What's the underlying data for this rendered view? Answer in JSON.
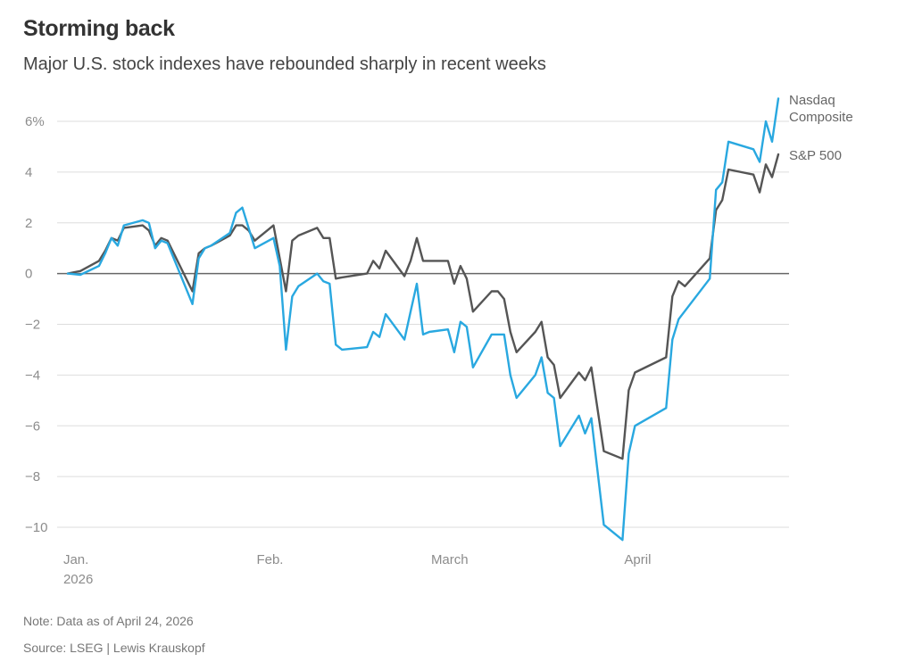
{
  "header": {
    "title": "Storming back",
    "subtitle": "Major U.S. stock indexes have rebounded sharply in recent weeks"
  },
  "footer": {
    "note": "Note: Data as of April 24, 2026",
    "source": "Source: LSEG | Lewis Krauskopf"
  },
  "colors": {
    "nasdaq": "#29a8e0",
    "sp500": "#555555",
    "grid": "#dddddd",
    "zero": "#666666"
  },
  "chart_data": {
    "type": "line",
    "title": "Storming back",
    "subtitle": "Major U.S. stock indexes have rebounded sharply in recent weeks",
    "ylabel": "",
    "y_unit": "%",
    "ylim": [
      -10.5,
      7
    ],
    "yticks": [
      -10,
      -8,
      -6,
      -4,
      -2,
      0,
      2,
      4,
      6
    ],
    "ytick_labels": [
      "−10",
      "−8",
      "−6",
      "−4",
      "−2",
      "0",
      "2",
      "4",
      "6%"
    ],
    "x_range": [
      "2025-12-31",
      "2026-04-24"
    ],
    "xticks": [
      {
        "date": "2026-01-01",
        "label": "Jan.",
        "label2": "2026"
      },
      {
        "date": "2026-02-01",
        "label": "Feb.",
        "label2": ""
      },
      {
        "date": "2026-03-01",
        "label": "March",
        "label2": ""
      },
      {
        "date": "2026-04-01",
        "label": "April",
        "label2": ""
      }
    ],
    "grid": true,
    "series": [
      {
        "name": "Nasdaq Composite",
        "label_lines": [
          "Nasdaq",
          "Composite"
        ],
        "color": "#29a8e0",
        "points": [
          [
            "2025-12-31",
            0.0
          ],
          [
            "2026-01-02",
            -0.05
          ],
          [
            "2026-01-05",
            0.3
          ],
          [
            "2026-01-06",
            0.8
          ],
          [
            "2026-01-07",
            1.4
          ],
          [
            "2026-01-08",
            1.1
          ],
          [
            "2026-01-09",
            1.9
          ],
          [
            "2026-01-12",
            2.1
          ],
          [
            "2026-01-13",
            2.0
          ],
          [
            "2026-01-14",
            1.0
          ],
          [
            "2026-01-15",
            1.3
          ],
          [
            "2026-01-16",
            1.2
          ],
          [
            "2026-01-20",
            -1.2
          ],
          [
            "2026-01-21",
            0.6
          ],
          [
            "2026-01-22",
            1.0
          ],
          [
            "2026-01-23",
            1.1
          ],
          [
            "2026-01-26",
            1.6
          ],
          [
            "2026-01-27",
            2.4
          ],
          [
            "2026-01-28",
            2.6
          ],
          [
            "2026-01-29",
            1.8
          ],
          [
            "2026-01-30",
            1.0
          ],
          [
            "2026-02-02",
            1.4
          ],
          [
            "2026-02-03",
            0.3
          ],
          [
            "2026-02-04",
            -3.0
          ],
          [
            "2026-02-05",
            -0.9
          ],
          [
            "2026-02-06",
            -0.5
          ],
          [
            "2026-02-09",
            0.0
          ],
          [
            "2026-02-10",
            -0.3
          ],
          [
            "2026-02-11",
            -0.4
          ],
          [
            "2026-02-12",
            -2.8
          ],
          [
            "2026-02-13",
            -3.0
          ],
          [
            "2026-02-17",
            -2.9
          ],
          [
            "2026-02-18",
            -2.3
          ],
          [
            "2026-02-19",
            -2.5
          ],
          [
            "2026-02-20",
            -1.6
          ],
          [
            "2026-02-23",
            -2.6
          ],
          [
            "2026-02-24",
            -1.5
          ],
          [
            "2026-02-25",
            -0.4
          ],
          [
            "2026-02-26",
            -2.4
          ],
          [
            "2026-02-27",
            -2.3
          ],
          [
            "2026-03-02",
            -2.2
          ],
          [
            "2026-03-03",
            -3.1
          ],
          [
            "2026-03-04",
            -1.9
          ],
          [
            "2026-03-05",
            -2.1
          ],
          [
            "2026-03-06",
            -3.7
          ],
          [
            "2026-03-09",
            -2.4
          ],
          [
            "2026-03-10",
            -2.4
          ],
          [
            "2026-03-11",
            -2.4
          ],
          [
            "2026-03-12",
            -4.0
          ],
          [
            "2026-03-13",
            -4.9
          ],
          [
            "2026-03-16",
            -4.0
          ],
          [
            "2026-03-17",
            -3.3
          ],
          [
            "2026-03-18",
            -4.7
          ],
          [
            "2026-03-19",
            -4.9
          ],
          [
            "2026-03-20",
            -6.8
          ],
          [
            "2026-03-23",
            -5.6
          ],
          [
            "2026-03-24",
            -6.3
          ],
          [
            "2026-03-25",
            -5.7
          ],
          [
            "2026-03-27",
            -9.9
          ],
          [
            "2026-03-30",
            -10.5
          ],
          [
            "2026-03-31",
            -7.1
          ],
          [
            "2026-04-01",
            -6.0
          ],
          [
            "2026-04-06",
            -5.3
          ],
          [
            "2026-04-07",
            -2.6
          ],
          [
            "2026-04-08",
            -1.8
          ],
          [
            "2026-04-13",
            -0.2
          ],
          [
            "2026-04-14",
            3.3
          ],
          [
            "2026-04-15",
            3.6
          ],
          [
            "2026-04-16",
            5.2
          ],
          [
            "2026-04-20",
            4.9
          ],
          [
            "2026-04-21",
            4.4
          ],
          [
            "2026-04-22",
            6.0
          ],
          [
            "2026-04-23",
            5.2
          ],
          [
            "2026-04-24",
            6.9
          ]
        ]
      },
      {
        "name": "S&P 500",
        "label_lines": [
          "S&P 500"
        ],
        "color": "#555555",
        "points": [
          [
            "2025-12-31",
            0.0
          ],
          [
            "2026-01-02",
            0.1
          ],
          [
            "2026-01-05",
            0.5
          ],
          [
            "2026-01-06",
            0.9
          ],
          [
            "2026-01-07",
            1.4
          ],
          [
            "2026-01-08",
            1.3
          ],
          [
            "2026-01-09",
            1.8
          ],
          [
            "2026-01-12",
            1.9
          ],
          [
            "2026-01-13",
            1.7
          ],
          [
            "2026-01-14",
            1.1
          ],
          [
            "2026-01-15",
            1.4
          ],
          [
            "2026-01-16",
            1.3
          ],
          [
            "2026-01-20",
            -0.7
          ],
          [
            "2026-01-21",
            0.8
          ],
          [
            "2026-01-22",
            1.0
          ],
          [
            "2026-01-23",
            1.1
          ],
          [
            "2026-01-26",
            1.5
          ],
          [
            "2026-01-27",
            1.9
          ],
          [
            "2026-01-28",
            1.9
          ],
          [
            "2026-01-29",
            1.7
          ],
          [
            "2026-01-30",
            1.3
          ],
          [
            "2026-02-02",
            1.9
          ],
          [
            "2026-02-03",
            0.6
          ],
          [
            "2026-02-04",
            -0.7
          ],
          [
            "2026-02-05",
            1.3
          ],
          [
            "2026-02-06",
            1.5
          ],
          [
            "2026-02-09",
            1.8
          ],
          [
            "2026-02-10",
            1.4
          ],
          [
            "2026-02-11",
            1.4
          ],
          [
            "2026-02-12",
            -0.2
          ],
          [
            "2026-02-13",
            -0.15
          ],
          [
            "2026-02-17",
            0.0
          ],
          [
            "2026-02-18",
            0.5
          ],
          [
            "2026-02-19",
            0.2
          ],
          [
            "2026-02-20",
            0.9
          ],
          [
            "2026-02-23",
            -0.1
          ],
          [
            "2026-02-24",
            0.5
          ],
          [
            "2026-02-25",
            1.4
          ],
          [
            "2026-02-26",
            0.5
          ],
          [
            "2026-02-27",
            0.5
          ],
          [
            "2026-03-02",
            0.5
          ],
          [
            "2026-03-03",
            -0.4
          ],
          [
            "2026-03-04",
            0.3
          ],
          [
            "2026-03-05",
            -0.2
          ],
          [
            "2026-03-06",
            -1.5
          ],
          [
            "2026-03-09",
            -0.7
          ],
          [
            "2026-03-10",
            -0.7
          ],
          [
            "2026-03-11",
            -1.0
          ],
          [
            "2026-03-12",
            -2.3
          ],
          [
            "2026-03-13",
            -3.1
          ],
          [
            "2026-03-16",
            -2.3
          ],
          [
            "2026-03-17",
            -1.9
          ],
          [
            "2026-03-18",
            -3.3
          ],
          [
            "2026-03-19",
            -3.6
          ],
          [
            "2026-03-20",
            -4.9
          ],
          [
            "2026-03-23",
            -3.9
          ],
          [
            "2026-03-24",
            -4.2
          ],
          [
            "2026-03-25",
            -3.7
          ],
          [
            "2026-03-27",
            -7.0
          ],
          [
            "2026-03-30",
            -7.3
          ],
          [
            "2026-03-31",
            -4.6
          ],
          [
            "2026-04-01",
            -3.9
          ],
          [
            "2026-04-06",
            -3.3
          ],
          [
            "2026-04-07",
            -0.9
          ],
          [
            "2026-04-08",
            -0.3
          ],
          [
            "2026-04-09",
            -0.5
          ],
          [
            "2026-04-13",
            0.6
          ],
          [
            "2026-04-14",
            2.5
          ],
          [
            "2026-04-15",
            2.9
          ],
          [
            "2026-04-16",
            4.1
          ],
          [
            "2026-04-20",
            3.9
          ],
          [
            "2026-04-21",
            3.2
          ],
          [
            "2026-04-22",
            4.3
          ],
          [
            "2026-04-23",
            3.8
          ],
          [
            "2026-04-24",
            4.7
          ]
        ]
      }
    ]
  }
}
